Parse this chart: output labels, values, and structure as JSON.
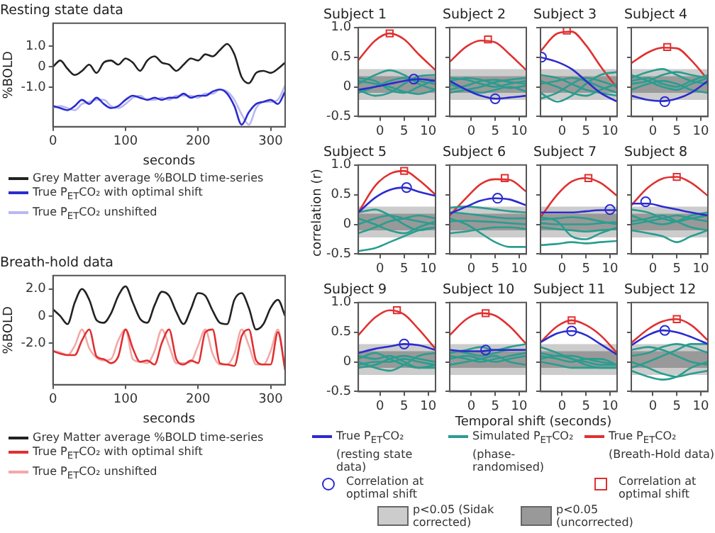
{
  "chart_data": [
    {
      "type": "line",
      "title": "Resting state data",
      "xlabel": "seconds",
      "ylabel": "%BOLD",
      "legend": "bottom",
      "x": [
        0,
        10,
        20,
        30,
        40,
        50,
        60,
        70,
        80,
        90,
        100,
        110,
        120,
        130,
        140,
        150,
        160,
        170,
        180,
        190,
        200,
        210,
        220,
        230,
        240,
        250,
        260,
        270,
        280,
        290,
        300,
        310,
        320
      ],
      "xlim": [
        0,
        320
      ],
      "xticks": [
        0,
        100,
        200,
        300
      ],
      "ylim": [
        -2.9,
        2.1
      ],
      "yticks": [
        {
          "value": 1,
          "label": "1.0"
        },
        0,
        {
          "value": -1,
          "label": "-1.0"
        }
      ],
      "series": [
        {
          "name": "Grey Matter average %BOLD time-series",
          "color": "#222222",
          "values": [
            0,
            0.3,
            -0.1,
            -0.4,
            -0.2,
            0.1,
            -0.3,
            0.2,
            0.3,
            0.1,
            0.4,
            0.2,
            -0.2,
            0.3,
            0.5,
            0.2,
            0.1,
            -0.2,
            0.1,
            0.4,
            0.3,
            0.6,
            0.5,
            0.8,
            1.1,
            0.6,
            -0.5,
            -0.8,
            -0.3,
            -0.2,
            -0.3,
            -0.1,
            0.2
          ]
        },
        {
          "name": "True P$_{ET}$CO₂ with optimal shift",
          "color": "#2b2bd0",
          "values": [
            -1.9,
            -2.0,
            -2.1,
            -1.9,
            -1.6,
            -1.8,
            -1.5,
            -1.8,
            -2.0,
            -1.9,
            -1.6,
            -1.4,
            -1.5,
            -1.6,
            -1.5,
            -1.6,
            -1.5,
            -1.5,
            -1.3,
            -1.5,
            -1.4,
            -1.4,
            -1.2,
            -1.1,
            -1.3,
            -1.9,
            -2.8,
            -2.2,
            -1.8,
            -1.7,
            -1.6,
            -1.8,
            -1.2
          ]
        },
        {
          "name": "True P$_{ET}$CO₂ unshifted",
          "color": "#b8b8f0",
          "values": [
            -2.0,
            -1.9,
            -2.0,
            -2.1,
            -1.8,
            -1.7,
            -1.6,
            -1.6,
            -1.9,
            -2.0,
            -1.8,
            -1.5,
            -1.4,
            -1.6,
            -1.6,
            -1.5,
            -1.6,
            -1.4,
            -1.4,
            -1.4,
            -1.5,
            -1.3,
            -1.3,
            -1.1,
            -1.2,
            -1.6,
            -2.3,
            -2.8,
            -2.0,
            -1.7,
            -1.7,
            -1.6,
            -0.9
          ]
        }
      ]
    },
    {
      "type": "line",
      "title": "Breath-hold data",
      "xlabel": "seconds",
      "ylabel": "%BOLD",
      "legend": "bottom",
      "x": [
        0,
        10,
        20,
        30,
        40,
        50,
        60,
        70,
        80,
        90,
        100,
        110,
        120,
        130,
        140,
        150,
        160,
        170,
        180,
        190,
        200,
        210,
        220,
        230,
        240,
        250,
        260,
        270,
        280,
        290,
        300,
        310,
        320
      ],
      "xlim": [
        0,
        320
      ],
      "xticks": [
        0,
        100,
        200,
        300
      ],
      "ylim": [
        -5.1,
        3.0
      ],
      "yticks": [
        {
          "value": 2,
          "label": "2.0"
        },
        0,
        {
          "value": -2,
          "label": "-2.0"
        }
      ],
      "series": [
        {
          "name": "Grey Matter average %BOLD time-series",
          "color": "#222222",
          "values": [
            0.5,
            0,
            -0.6,
            1.0,
            2.0,
            1.2,
            -0.3,
            -0.5,
            0.2,
            1.5,
            2.2,
            1.0,
            -0.2,
            -0.5,
            0.8,
            1.8,
            1.5,
            0.3,
            -0.6,
            0.5,
            1.7,
            1.5,
            0.4,
            -0.5,
            -0.6,
            1.2,
            1.7,
            0.6,
            -1.0,
            -0.6,
            0.6,
            1.2,
            0
          ]
        },
        {
          "name": "True P$_{ET}$CO₂ with optimal shift",
          "color": "#e03030",
          "values": [
            -2.6,
            -2.8,
            -2.9,
            -2.9,
            -1.8,
            -1.0,
            -3.0,
            -3.2,
            -3.5,
            -3.0,
            -1.0,
            -2.4,
            -3.4,
            -3.3,
            -3.6,
            -2.0,
            -1.0,
            -3.2,
            -3.6,
            -3.3,
            -3.5,
            -1.2,
            -1.0,
            -3.5,
            -3.6,
            -3.7,
            -1.5,
            -1.0,
            -3.3,
            -3.6,
            -3.6,
            -1.2,
            -4.0
          ]
        },
        {
          "name": "True P$_{ET}$CO₂ unshifted",
          "color": "#f4a8a8",
          "values": [
            -2.6,
            -2.7,
            -2.9,
            -2.2,
            -1.0,
            -2.4,
            -3.1,
            -3.3,
            -3.2,
            -1.8,
            -1.0,
            -3.2,
            -3.4,
            -3.5,
            -2.6,
            -1.0,
            -2.2,
            -3.5,
            -3.5,
            -3.4,
            -2.2,
            -1.0,
            -2.8,
            -3.6,
            -3.6,
            -2.8,
            -1.0,
            -2.2,
            -3.6,
            -3.6,
            -2.6,
            -1.0,
            -4.0
          ]
        }
      ]
    },
    {
      "type": "line",
      "title": "Subject 1",
      "legend": "bottom",
      "x": [
        -4.5,
        -1,
        2,
        5,
        8,
        11.5
      ],
      "xlim": [
        -4.5,
        11.5
      ],
      "xticks": [
        0,
        5,
        10
      ],
      "ylim": [
        -0.5,
        1
      ],
      "yticks": [
        -0.5,
        0,
        0.5,
        {
          "value": 1,
          "label": "1.0"
        }
      ],
      "bands": [
        {
          "axis": "y",
          "from": -0.22,
          "to": 0.3,
          "color": "#cccccc",
          "label": "p<0.05 (Sidak corrected)"
        },
        {
          "axis": "y",
          "from": -0.1,
          "to": 0.18,
          "color": "#999999",
          "label": "p<0.05 (uncorrected)"
        }
      ],
      "series": [
        {
          "type": "line",
          "name": "True P$_{ET}$CO₂ (resting state data)",
          "color": "#2b2bd0",
          "values": [
            -0.05,
            0.0,
            0.05,
            0.1,
            0.13,
            0.1
          ]
        },
        {
          "type": "line",
          "name": "Simulated P$_{ET}$CO₂ (phase-randomised)",
          "color": "#2a9d8f",
          "values": [
            0.05,
            0.2,
            0.28,
            0.2,
            0.05,
            -0.05
          ]
        },
        {
          "type": "line",
          "color": "#2a9d8f",
          "values": [
            -0.1,
            0.0,
            0.1,
            0.15,
            0.1,
            0.05
          ]
        },
        {
          "type": "line",
          "color": "#2a9d8f",
          "values": [
            0.15,
            0.1,
            -0.05,
            -0.1,
            0.0,
            0.12
          ]
        },
        {
          "type": "line",
          "color": "#2a9d8f",
          "values": [
            -0.05,
            -0.15,
            -0.1,
            0.05,
            0.18,
            0.2
          ]
        },
        {
          "type": "line",
          "color": "#2a9d8f",
          "values": [
            0.1,
            0.05,
            0.0,
            -0.08,
            -0.12,
            -0.05
          ]
        },
        {
          "type": "line",
          "name": "True P$_{ET}$CO₂ (Breath-Hold data)",
          "color": "#e03030",
          "values": [
            0.45,
            0.78,
            0.9,
            0.8,
            0.55,
            0.28
          ]
        },
        {
          "type": "scatter",
          "marker": "circle",
          "name": "Correlation at optimal shift",
          "color": "#2b2bd0",
          "x": [
            7
          ],
          "values": [
            0.13
          ]
        },
        {
          "type": "scatter",
          "marker": "square",
          "name": "Correlation at optimal shift",
          "color": "#e03030",
          "x": [
            2
          ],
          "values": [
            0.9
          ]
        }
      ]
    },
    {
      "type": "line",
      "title": "Subject 2",
      "tick_labels": "x",
      "x": [
        -4.5,
        -1,
        2,
        5,
        8,
        11.5
      ],
      "xlim": [
        -4.5,
        11.5
      ],
      "xticks": [
        0,
        5,
        10
      ],
      "ylim": [
        -0.5,
        1
      ],
      "yticks": [
        -0.5,
        0,
        0.5,
        1
      ],
      "bands": [
        {
          "axis": "y",
          "from": -0.22,
          "to": 0.3,
          "color": "#cccccc"
        },
        {
          "axis": "y",
          "from": -0.1,
          "to": 0.18,
          "color": "#999999"
        }
      ],
      "series": [
        {
          "type": "line",
          "color": "#2b2bd0",
          "values": [
            0.1,
            -0.05,
            -0.15,
            -0.2,
            -0.18,
            -0.15
          ]
        },
        {
          "type": "line",
          "color": "#2a9d8f",
          "values": [
            0.15,
            0.12,
            0.05,
            0.0,
            0.05,
            0.1
          ]
        },
        {
          "type": "line",
          "color": "#2a9d8f",
          "values": [
            -0.05,
            0.02,
            0.1,
            0.12,
            0.08,
            0.05
          ]
        },
        {
          "type": "line",
          "color": "#2a9d8f",
          "values": [
            0.05,
            -0.05,
            -0.1,
            -0.05,
            0.0,
            -0.08
          ]
        },
        {
          "type": "line",
          "color": "#2a9d8f",
          "values": [
            0.1,
            0.15,
            0.12,
            0.05,
            -0.02,
            0.02
          ]
        },
        {
          "type": "line",
          "color": "#2a9d8f",
          "values": [
            -0.1,
            -0.05,
            0.0,
            0.08,
            0.12,
            0.15
          ]
        },
        {
          "type": "line",
          "color": "#e03030",
          "values": [
            0.42,
            0.68,
            0.78,
            0.75,
            0.55,
            0.28
          ]
        },
        {
          "type": "scatter",
          "marker": "circle",
          "color": "#2b2bd0",
          "x": [
            5
          ],
          "values": [
            -0.2
          ]
        },
        {
          "type": "scatter",
          "marker": "square",
          "color": "#e03030",
          "x": [
            3.5
          ],
          "values": [
            0.8
          ]
        }
      ]
    },
    {
      "type": "line",
      "title": "Subject 3",
      "tick_labels": "x",
      "x": [
        -4.5,
        -1,
        2,
        5,
        8,
        11.5
      ],
      "xlim": [
        -4.5,
        11.5
      ],
      "xticks": [
        0,
        5,
        10
      ],
      "ylim": [
        -0.5,
        1
      ],
      "yticks": [
        -0.5,
        0,
        0.5,
        1
      ],
      "bands": [
        {
          "axis": "y",
          "from": -0.22,
          "to": 0.3,
          "color": "#cccccc"
        },
        {
          "axis": "y",
          "from": -0.1,
          "to": 0.18,
          "color": "#999999"
        }
      ],
      "series": [
        {
          "type": "line",
          "color": "#2b2bd0",
          "values": [
            0.5,
            0.42,
            0.3,
            0.1,
            -0.1,
            -0.25
          ]
        },
        {
          "type": "line",
          "color": "#2a9d8f",
          "values": [
            -0.2,
            -0.1,
            0.05,
            0.15,
            0.1,
            0.0
          ]
        },
        {
          "type": "line",
          "color": "#2a9d8f",
          "values": [
            0.2,
            0.15,
            0.05,
            -0.05,
            -0.1,
            -0.15
          ]
        },
        {
          "type": "line",
          "color": "#2a9d8f",
          "values": [
            -0.1,
            -0.25,
            -0.15,
            0.05,
            0.2,
            0.25
          ]
        },
        {
          "type": "line",
          "color": "#2a9d8f",
          "values": [
            0.05,
            0.1,
            0.15,
            0.1,
            0.0,
            -0.1
          ]
        },
        {
          "type": "line",
          "color": "#2a9d8f",
          "values": [
            0.1,
            0.0,
            -0.1,
            -0.15,
            -0.05,
            0.05
          ]
        },
        {
          "type": "line",
          "color": "#e03030",
          "values": [
            0.6,
            0.9,
            0.93,
            0.7,
            0.35,
            -0.02
          ]
        },
        {
          "type": "scatter",
          "marker": "circle",
          "color": "#2b2bd0",
          "x": [
            -4.3
          ],
          "values": [
            0.5
          ]
        },
        {
          "type": "scatter",
          "marker": "square",
          "color": "#e03030",
          "x": [
            1
          ],
          "values": [
            0.95
          ]
        }
      ]
    },
    {
      "type": "line",
      "title": "Subject 4",
      "tick_labels": "x",
      "x": [
        -4.5,
        -1,
        2,
        5,
        8,
        11.5
      ],
      "xlim": [
        -4.5,
        11.5
      ],
      "xticks": [
        0,
        5,
        10
      ],
      "ylim": [
        -0.5,
        1
      ],
      "yticks": [
        -0.5,
        0,
        0.5,
        1
      ],
      "bands": [
        {
          "axis": "y",
          "from": -0.22,
          "to": 0.3,
          "color": "#cccccc"
        },
        {
          "axis": "y",
          "from": -0.1,
          "to": 0.18,
          "color": "#999999"
        }
      ],
      "series": [
        {
          "type": "line",
          "color": "#2b2bd0",
          "values": [
            -0.15,
            -0.22,
            -0.24,
            -0.2,
            -0.1,
            0.1
          ]
        },
        {
          "type": "line",
          "color": "#2a9d8f",
          "values": [
            0.15,
            0.25,
            0.3,
            0.2,
            0.1,
            0.05
          ]
        },
        {
          "type": "line",
          "color": "#2a9d8f",
          "values": [
            0.05,
            0.1,
            0.2,
            0.25,
            0.2,
            0.15
          ]
        },
        {
          "type": "line",
          "color": "#2a9d8f",
          "values": [
            0.2,
            0.1,
            0.0,
            -0.05,
            0.05,
            0.15
          ]
        },
        {
          "type": "line",
          "color": "#2a9d8f",
          "values": [
            -0.05,
            0.05,
            0.1,
            0.05,
            -0.05,
            -0.1
          ]
        },
        {
          "type": "line",
          "color": "#2a9d8f",
          "values": [
            0.1,
            0.15,
            0.05,
            0.0,
            0.1,
            0.2
          ]
        },
        {
          "type": "line",
          "color": "#e03030",
          "values": [
            0.4,
            0.58,
            0.66,
            0.65,
            0.45,
            0.12
          ]
        },
        {
          "type": "scatter",
          "marker": "circle",
          "color": "#2b2bd0",
          "x": [
            2.5
          ],
          "values": [
            -0.25
          ]
        },
        {
          "type": "scatter",
          "marker": "square",
          "color": "#e03030",
          "x": [
            3
          ],
          "values": [
            0.67
          ]
        }
      ]
    },
    {
      "type": "line",
      "title": "Subject 5",
      "ylabel": "correlation (r)",
      "x": [
        -4.5,
        -1,
        2,
        5,
        8,
        11.5
      ],
      "xlim": [
        -4.5,
        11.5
      ],
      "xticks": [
        0,
        5,
        10
      ],
      "ylim": [
        -0.5,
        1
      ],
      "yticks": [
        -0.5,
        0,
        0.5,
        {
          "value": 1,
          "label": "1.0"
        }
      ],
      "bands": [
        {
          "axis": "y",
          "from": -0.22,
          "to": 0.3,
          "color": "#cccccc"
        },
        {
          "axis": "y",
          "from": -0.1,
          "to": 0.18,
          "color": "#999999"
        }
      ],
      "series": [
        {
          "type": "line",
          "color": "#2b2bd0",
          "values": [
            0.2,
            0.45,
            0.58,
            0.62,
            0.55,
            0.48
          ]
        },
        {
          "type": "line",
          "color": "#2a9d8f",
          "values": [
            -0.45,
            -0.4,
            -0.3,
            -0.2,
            -0.1,
            -0.05
          ]
        },
        {
          "type": "line",
          "color": "#2a9d8f",
          "values": [
            0.2,
            0.25,
            0.15,
            0.0,
            -0.1,
            -0.05
          ]
        },
        {
          "type": "line",
          "color": "#2a9d8f",
          "values": [
            0.0,
            0.1,
            0.15,
            0.1,
            0.05,
            0.0
          ]
        },
        {
          "type": "line",
          "color": "#2a9d8f",
          "values": [
            -0.15,
            -0.05,
            0.05,
            0.1,
            0.15,
            0.1
          ]
        },
        {
          "type": "line",
          "color": "#2a9d8f",
          "values": [
            0.1,
            0.0,
            -0.1,
            -0.15,
            -0.05,
            0.05
          ]
        },
        {
          "type": "line",
          "color": "#e03030",
          "values": [
            0.2,
            0.65,
            0.85,
            0.9,
            0.75,
            0.5
          ]
        },
        {
          "type": "scatter",
          "marker": "circle",
          "color": "#2b2bd0",
          "x": [
            5.5
          ],
          "values": [
            0.62
          ]
        },
        {
          "type": "scatter",
          "marker": "square",
          "color": "#e03030",
          "x": [
            5
          ],
          "values": [
            0.9
          ]
        }
      ]
    },
    {
      "type": "line",
      "title": "Subject 6",
      "tick_labels": "x",
      "x": [
        -4.5,
        -1,
        2,
        5,
        8,
        11.5
      ],
      "xlim": [
        -4.5,
        11.5
      ],
      "xticks": [
        0,
        5,
        10
      ],
      "ylim": [
        -0.5,
        1
      ],
      "yticks": [
        -0.5,
        0,
        0.5,
        1
      ],
      "bands": [
        {
          "axis": "y",
          "from": -0.22,
          "to": 0.3,
          "color": "#cccccc"
        },
        {
          "axis": "y",
          "from": -0.1,
          "to": 0.18,
          "color": "#999999"
        }
      ],
      "series": [
        {
          "type": "line",
          "color": "#2b2bd0",
          "values": [
            0.18,
            0.3,
            0.4,
            0.44,
            0.42,
            0.32
          ]
        },
        {
          "type": "line",
          "color": "#2a9d8f",
          "values": [
            0.1,
            0.0,
            -0.15,
            -0.3,
            -0.38,
            -0.38
          ]
        },
        {
          "type": "line",
          "color": "#2a9d8f",
          "values": [
            0.2,
            0.18,
            0.15,
            0.12,
            0.1,
            0.1
          ]
        },
        {
          "type": "line",
          "color": "#2a9d8f",
          "values": [
            -0.15,
            -0.12,
            -0.08,
            -0.05,
            -0.05,
            -0.08
          ]
        },
        {
          "type": "line",
          "color": "#2a9d8f",
          "values": [
            0.05,
            0.06,
            0.05,
            0.04,
            0.02,
            0.0
          ]
        },
        {
          "type": "line",
          "color": "#2a9d8f",
          "values": [
            0.28,
            0.3,
            0.28,
            0.25,
            0.22,
            0.2
          ]
        },
        {
          "type": "line",
          "color": "#e03030",
          "values": [
            0.15,
            0.45,
            0.68,
            0.76,
            0.75,
            0.55
          ]
        },
        {
          "type": "scatter",
          "marker": "circle",
          "color": "#2b2bd0",
          "x": [
            5.5
          ],
          "values": [
            0.44
          ]
        },
        {
          "type": "scatter",
          "marker": "square",
          "color": "#e03030",
          "x": [
            7
          ],
          "values": [
            0.78
          ]
        }
      ]
    },
    {
      "type": "line",
      "title": "Subject 7",
      "tick_labels": "x",
      "x": [
        -4.5,
        -1,
        2,
        5,
        8,
        11.5
      ],
      "xlim": [
        -4.5,
        11.5
      ],
      "xticks": [
        0,
        5,
        10
      ],
      "ylim": [
        -0.5,
        1
      ],
      "yticks": [
        -0.5,
        0,
        0.5,
        1
      ],
      "bands": [
        {
          "axis": "y",
          "from": -0.22,
          "to": 0.3,
          "color": "#cccccc"
        },
        {
          "axis": "y",
          "from": -0.1,
          "to": 0.18,
          "color": "#999999"
        }
      ],
      "series": [
        {
          "type": "line",
          "color": "#2b2bd0",
          "values": [
            0.2,
            0.2,
            0.2,
            0.22,
            0.24,
            0.24
          ]
        },
        {
          "type": "line",
          "color": "#2a9d8f",
          "values": [
            0.12,
            0.05,
            -0.2,
            -0.25,
            -0.15,
            -0.05
          ]
        },
        {
          "type": "line",
          "color": "#2a9d8f",
          "values": [
            0.08,
            0.1,
            0.12,
            0.1,
            0.05,
            0.0
          ]
        },
        {
          "type": "line",
          "color": "#2a9d8f",
          "values": [
            -0.35,
            -0.33,
            -0.3,
            -0.32,
            -0.3,
            -0.28
          ]
        },
        {
          "type": "line",
          "color": "#2a9d8f",
          "values": [
            0.02,
            0.0,
            0.0,
            0.0,
            0.02,
            0.04
          ]
        },
        {
          "type": "line",
          "color": "#2a9d8f",
          "values": [
            -0.05,
            -0.08,
            -0.1,
            -0.12,
            -0.1,
            -0.08
          ]
        },
        {
          "type": "line",
          "color": "#e03030",
          "values": [
            0.12,
            0.5,
            0.72,
            0.78,
            0.7,
            0.48
          ]
        },
        {
          "type": "scatter",
          "marker": "circle",
          "color": "#2b2bd0",
          "x": [
            10
          ],
          "values": [
            0.25
          ]
        },
        {
          "type": "scatter",
          "marker": "square",
          "color": "#e03030",
          "x": [
            5.5
          ],
          "values": [
            0.78
          ]
        }
      ]
    },
    {
      "type": "line",
      "title": "Subject 8",
      "tick_labels": "x",
      "x": [
        -4.5,
        -1,
        2,
        5,
        8,
        11.5
      ],
      "xlim": [
        -4.5,
        11.5
      ],
      "xticks": [
        0,
        5,
        10
      ],
      "ylim": [
        -0.5,
        1
      ],
      "yticks": [
        -0.5,
        0,
        0.5,
        1
      ],
      "bands": [
        {
          "axis": "y",
          "from": -0.22,
          "to": 0.3,
          "color": "#cccccc"
        },
        {
          "axis": "y",
          "from": -0.1,
          "to": 0.18,
          "color": "#999999"
        }
      ],
      "series": [
        {
          "type": "line",
          "color": "#2b2bd0",
          "values": [
            0.35,
            0.35,
            0.3,
            0.25,
            0.2,
            0.15
          ]
        },
        {
          "type": "line",
          "color": "#2a9d8f",
          "values": [
            0.25,
            0.2,
            0.1,
            0.05,
            0.1,
            0.15
          ]
        },
        {
          "type": "line",
          "color": "#2a9d8f",
          "values": [
            0.05,
            0.1,
            0.15,
            0.05,
            -0.05,
            -0.1
          ]
        },
        {
          "type": "line",
          "color": "#2a9d8f",
          "values": [
            -0.1,
            -0.15,
            -0.2,
            -0.3,
            -0.2,
            -0.1
          ]
        },
        {
          "type": "line",
          "color": "#2a9d8f",
          "values": [
            0.15,
            0.05,
            0.0,
            0.05,
            0.15,
            0.2
          ]
        },
        {
          "type": "line",
          "color": "#2a9d8f",
          "values": [
            0.0,
            0.05,
            0.1,
            0.15,
            0.1,
            0.05
          ]
        },
        {
          "type": "line",
          "color": "#e03030",
          "values": [
            0.32,
            0.62,
            0.77,
            0.8,
            0.7,
            0.48
          ]
        },
        {
          "type": "scatter",
          "marker": "circle",
          "color": "#2b2bd0",
          "x": [
            -1.5
          ],
          "values": [
            0.38
          ]
        },
        {
          "type": "scatter",
          "marker": "square",
          "color": "#e03030",
          "x": [
            5
          ],
          "values": [
            0.8
          ]
        }
      ]
    },
    {
      "type": "line",
      "title": "Subject 9",
      "x": [
        -4.5,
        -1,
        2,
        5,
        8,
        11.5
      ],
      "xlim": [
        -4.5,
        11.5
      ],
      "xticks": [
        0,
        5,
        10
      ],
      "ylim": [
        -0.5,
        1
      ],
      "yticks": [
        -0.5,
        0,
        0.5,
        {
          "value": 1,
          "label": "1.0"
        }
      ],
      "bands": [
        {
          "axis": "y",
          "from": -0.22,
          "to": 0.3,
          "color": "#cccccc"
        },
        {
          "axis": "y",
          "from": -0.1,
          "to": 0.18,
          "color": "#999999"
        }
      ],
      "series": [
        {
          "type": "line",
          "color": "#2b2bd0",
          "values": [
            0.15,
            0.22,
            0.26,
            0.3,
            0.28,
            0.2
          ]
        },
        {
          "type": "line",
          "color": "#2a9d8f",
          "values": [
            0.1,
            0.05,
            0.1,
            0.0,
            -0.1,
            -0.1
          ]
        },
        {
          "type": "line",
          "color": "#2a9d8f",
          "values": [
            -0.1,
            -0.05,
            0.05,
            0.1,
            0.05,
            0.0
          ]
        },
        {
          "type": "line",
          "color": "#2a9d8f",
          "values": [
            0.05,
            0.15,
            0.05,
            -0.05,
            -0.1,
            -0.05
          ]
        },
        {
          "type": "line",
          "color": "#2a9d8f",
          "values": [
            0.0,
            -0.1,
            -0.15,
            -0.05,
            0.1,
            0.15
          ]
        },
        {
          "type": "line",
          "color": "#2a9d8f",
          "values": [
            -0.05,
            0.0,
            0.0,
            0.05,
            0.0,
            -0.05
          ]
        },
        {
          "type": "line",
          "color": "#e03030",
          "values": [
            0.45,
            0.75,
            0.87,
            0.8,
            0.55,
            0.22
          ]
        },
        {
          "type": "scatter",
          "marker": "circle",
          "color": "#2b2bd0",
          "x": [
            5
          ],
          "values": [
            0.3
          ]
        },
        {
          "type": "scatter",
          "marker": "square",
          "color": "#e03030",
          "x": [
            3.5
          ],
          "values": [
            0.87
          ]
        }
      ]
    },
    {
      "type": "line",
      "title": "Subject 10",
      "xlabel": "Temporal shift (seconds)",
      "tick_labels": "x",
      "x": [
        -4.5,
        -1,
        2,
        5,
        8,
        11.5
      ],
      "xlim": [
        -4.5,
        11.5
      ],
      "xticks": [
        0,
        5,
        10
      ],
      "ylim": [
        -0.5,
        1
      ],
      "yticks": [
        -0.5,
        0,
        0.5,
        1
      ],
      "bands": [
        {
          "axis": "y",
          "from": -0.22,
          "to": 0.3,
          "color": "#cccccc"
        },
        {
          "axis": "y",
          "from": -0.1,
          "to": 0.18,
          "color": "#999999"
        }
      ],
      "series": [
        {
          "type": "line",
          "color": "#2b2bd0",
          "values": [
            0.2,
            0.18,
            0.18,
            0.2,
            0.2,
            0.2
          ]
        },
        {
          "type": "line",
          "color": "#2a9d8f",
          "values": [
            0.15,
            0.2,
            0.25,
            0.2,
            0.25,
            0.3
          ]
        },
        {
          "type": "line",
          "color": "#2a9d8f",
          "values": [
            0.05,
            0.1,
            0.05,
            0.0,
            0.05,
            0.1
          ]
        },
        {
          "type": "line",
          "color": "#2a9d8f",
          "values": [
            0.2,
            0.15,
            0.1,
            0.15,
            0.2,
            0.2
          ]
        },
        {
          "type": "line",
          "color": "#2a9d8f",
          "values": [
            -0.05,
            0.0,
            0.05,
            0.1,
            0.0,
            -0.05
          ]
        },
        {
          "type": "line",
          "color": "#2a9d8f",
          "values": [
            0.1,
            0.05,
            0.0,
            0.05,
            0.1,
            0.15
          ]
        },
        {
          "type": "line",
          "color": "#e03030",
          "values": [
            0.45,
            0.72,
            0.82,
            0.78,
            0.6,
            0.3
          ]
        },
        {
          "type": "scatter",
          "marker": "circle",
          "color": "#2b2bd0",
          "x": [
            3
          ],
          "values": [
            0.2
          ]
        },
        {
          "type": "scatter",
          "marker": "square",
          "color": "#e03030",
          "x": [
            3
          ],
          "values": [
            0.82
          ]
        }
      ]
    },
    {
      "type": "line",
      "title": "Subject 11",
      "tick_labels": "x",
      "x": [
        -4.5,
        -1,
        2,
        5,
        8,
        11.5
      ],
      "xlim": [
        -4.5,
        11.5
      ],
      "xticks": [
        0,
        5,
        10
      ],
      "ylim": [
        -0.5,
        1
      ],
      "yticks": [
        -0.5,
        0,
        0.5,
        1
      ],
      "bands": [
        {
          "axis": "y",
          "from": -0.22,
          "to": 0.3,
          "color": "#cccccc"
        },
        {
          "axis": "y",
          "from": -0.1,
          "to": 0.18,
          "color": "#999999"
        }
      ],
      "series": [
        {
          "type": "line",
          "color": "#2b2bd0",
          "values": [
            0.33,
            0.48,
            0.52,
            0.45,
            0.3,
            0.12
          ]
        },
        {
          "type": "line",
          "color": "#2a9d8f",
          "values": [
            0.25,
            0.15,
            0.05,
            0.0,
            -0.05,
            -0.05
          ]
        },
        {
          "type": "line",
          "color": "#2a9d8f",
          "values": [
            0.1,
            0.05,
            0.0,
            0.05,
            0.05,
            -0.05
          ]
        },
        {
          "type": "line",
          "color": "#2a9d8f",
          "values": [
            0.0,
            -0.05,
            -0.1,
            -0.1,
            -0.1,
            -0.1
          ]
        },
        {
          "type": "line",
          "color": "#2a9d8f",
          "values": [
            0.15,
            0.1,
            0.1,
            0.05,
            0.0,
            -0.05
          ]
        },
        {
          "type": "line",
          "color": "#2a9d8f",
          "values": [
            0.05,
            0.1,
            0.05,
            -0.05,
            -0.1,
            -0.1
          ]
        },
        {
          "type": "line",
          "color": "#e03030",
          "values": [
            0.33,
            0.6,
            0.7,
            0.62,
            0.45,
            0.15
          ]
        },
        {
          "type": "scatter",
          "marker": "circle",
          "color": "#2b2bd0",
          "x": [
            2
          ],
          "values": [
            0.52
          ]
        },
        {
          "type": "scatter",
          "marker": "square",
          "color": "#e03030",
          "x": [
            2
          ],
          "values": [
            0.7
          ]
        }
      ]
    },
    {
      "type": "line",
      "title": "Subject 12",
      "tick_labels": "x",
      "x": [
        -4.5,
        -1,
        2,
        5,
        8,
        11.5
      ],
      "xlim": [
        -4.5,
        11.5
      ],
      "xticks": [
        0,
        5,
        10
      ],
      "ylim": [
        -0.5,
        1
      ],
      "yticks": [
        -0.5,
        0,
        0.5,
        1
      ],
      "bands": [
        {
          "axis": "y",
          "from": -0.22,
          "to": 0.3,
          "color": "#cccccc"
        },
        {
          "axis": "y",
          "from": -0.1,
          "to": 0.18,
          "color": "#999999"
        }
      ],
      "series": [
        {
          "type": "line",
          "color": "#2b2bd0",
          "values": [
            0.28,
            0.45,
            0.53,
            0.5,
            0.42,
            0.3
          ]
        },
        {
          "type": "line",
          "color": "#2a9d8f",
          "values": [
            0.2,
            0.25,
            0.2,
            0.1,
            0.0,
            -0.05
          ]
        },
        {
          "type": "line",
          "color": "#2a9d8f",
          "values": [
            0.0,
            -0.1,
            -0.2,
            -0.25,
            -0.2,
            -0.15
          ]
        },
        {
          "type": "line",
          "color": "#2a9d8f",
          "values": [
            -0.15,
            -0.25,
            -0.3,
            -0.25,
            -0.1,
            0.0
          ]
        },
        {
          "type": "line",
          "color": "#2a9d8f",
          "values": [
            0.1,
            0.15,
            0.25,
            0.3,
            0.25,
            0.15
          ]
        },
        {
          "type": "line",
          "color": "#2a9d8f",
          "values": [
            -0.1,
            0.0,
            0.1,
            0.2,
            0.3,
            0.3
          ]
        },
        {
          "type": "line",
          "color": "#e03030",
          "values": [
            0.32,
            0.55,
            0.68,
            0.72,
            0.62,
            0.36
          ]
        },
        {
          "type": "scatter",
          "marker": "circle",
          "color": "#2b2bd0",
          "x": [
            2.5
          ],
          "values": [
            0.53
          ]
        },
        {
          "type": "scatter",
          "marker": "square",
          "color": "#e03030",
          "x": [
            5
          ],
          "values": [
            0.72
          ]
        }
      ]
    }
  ]
}
